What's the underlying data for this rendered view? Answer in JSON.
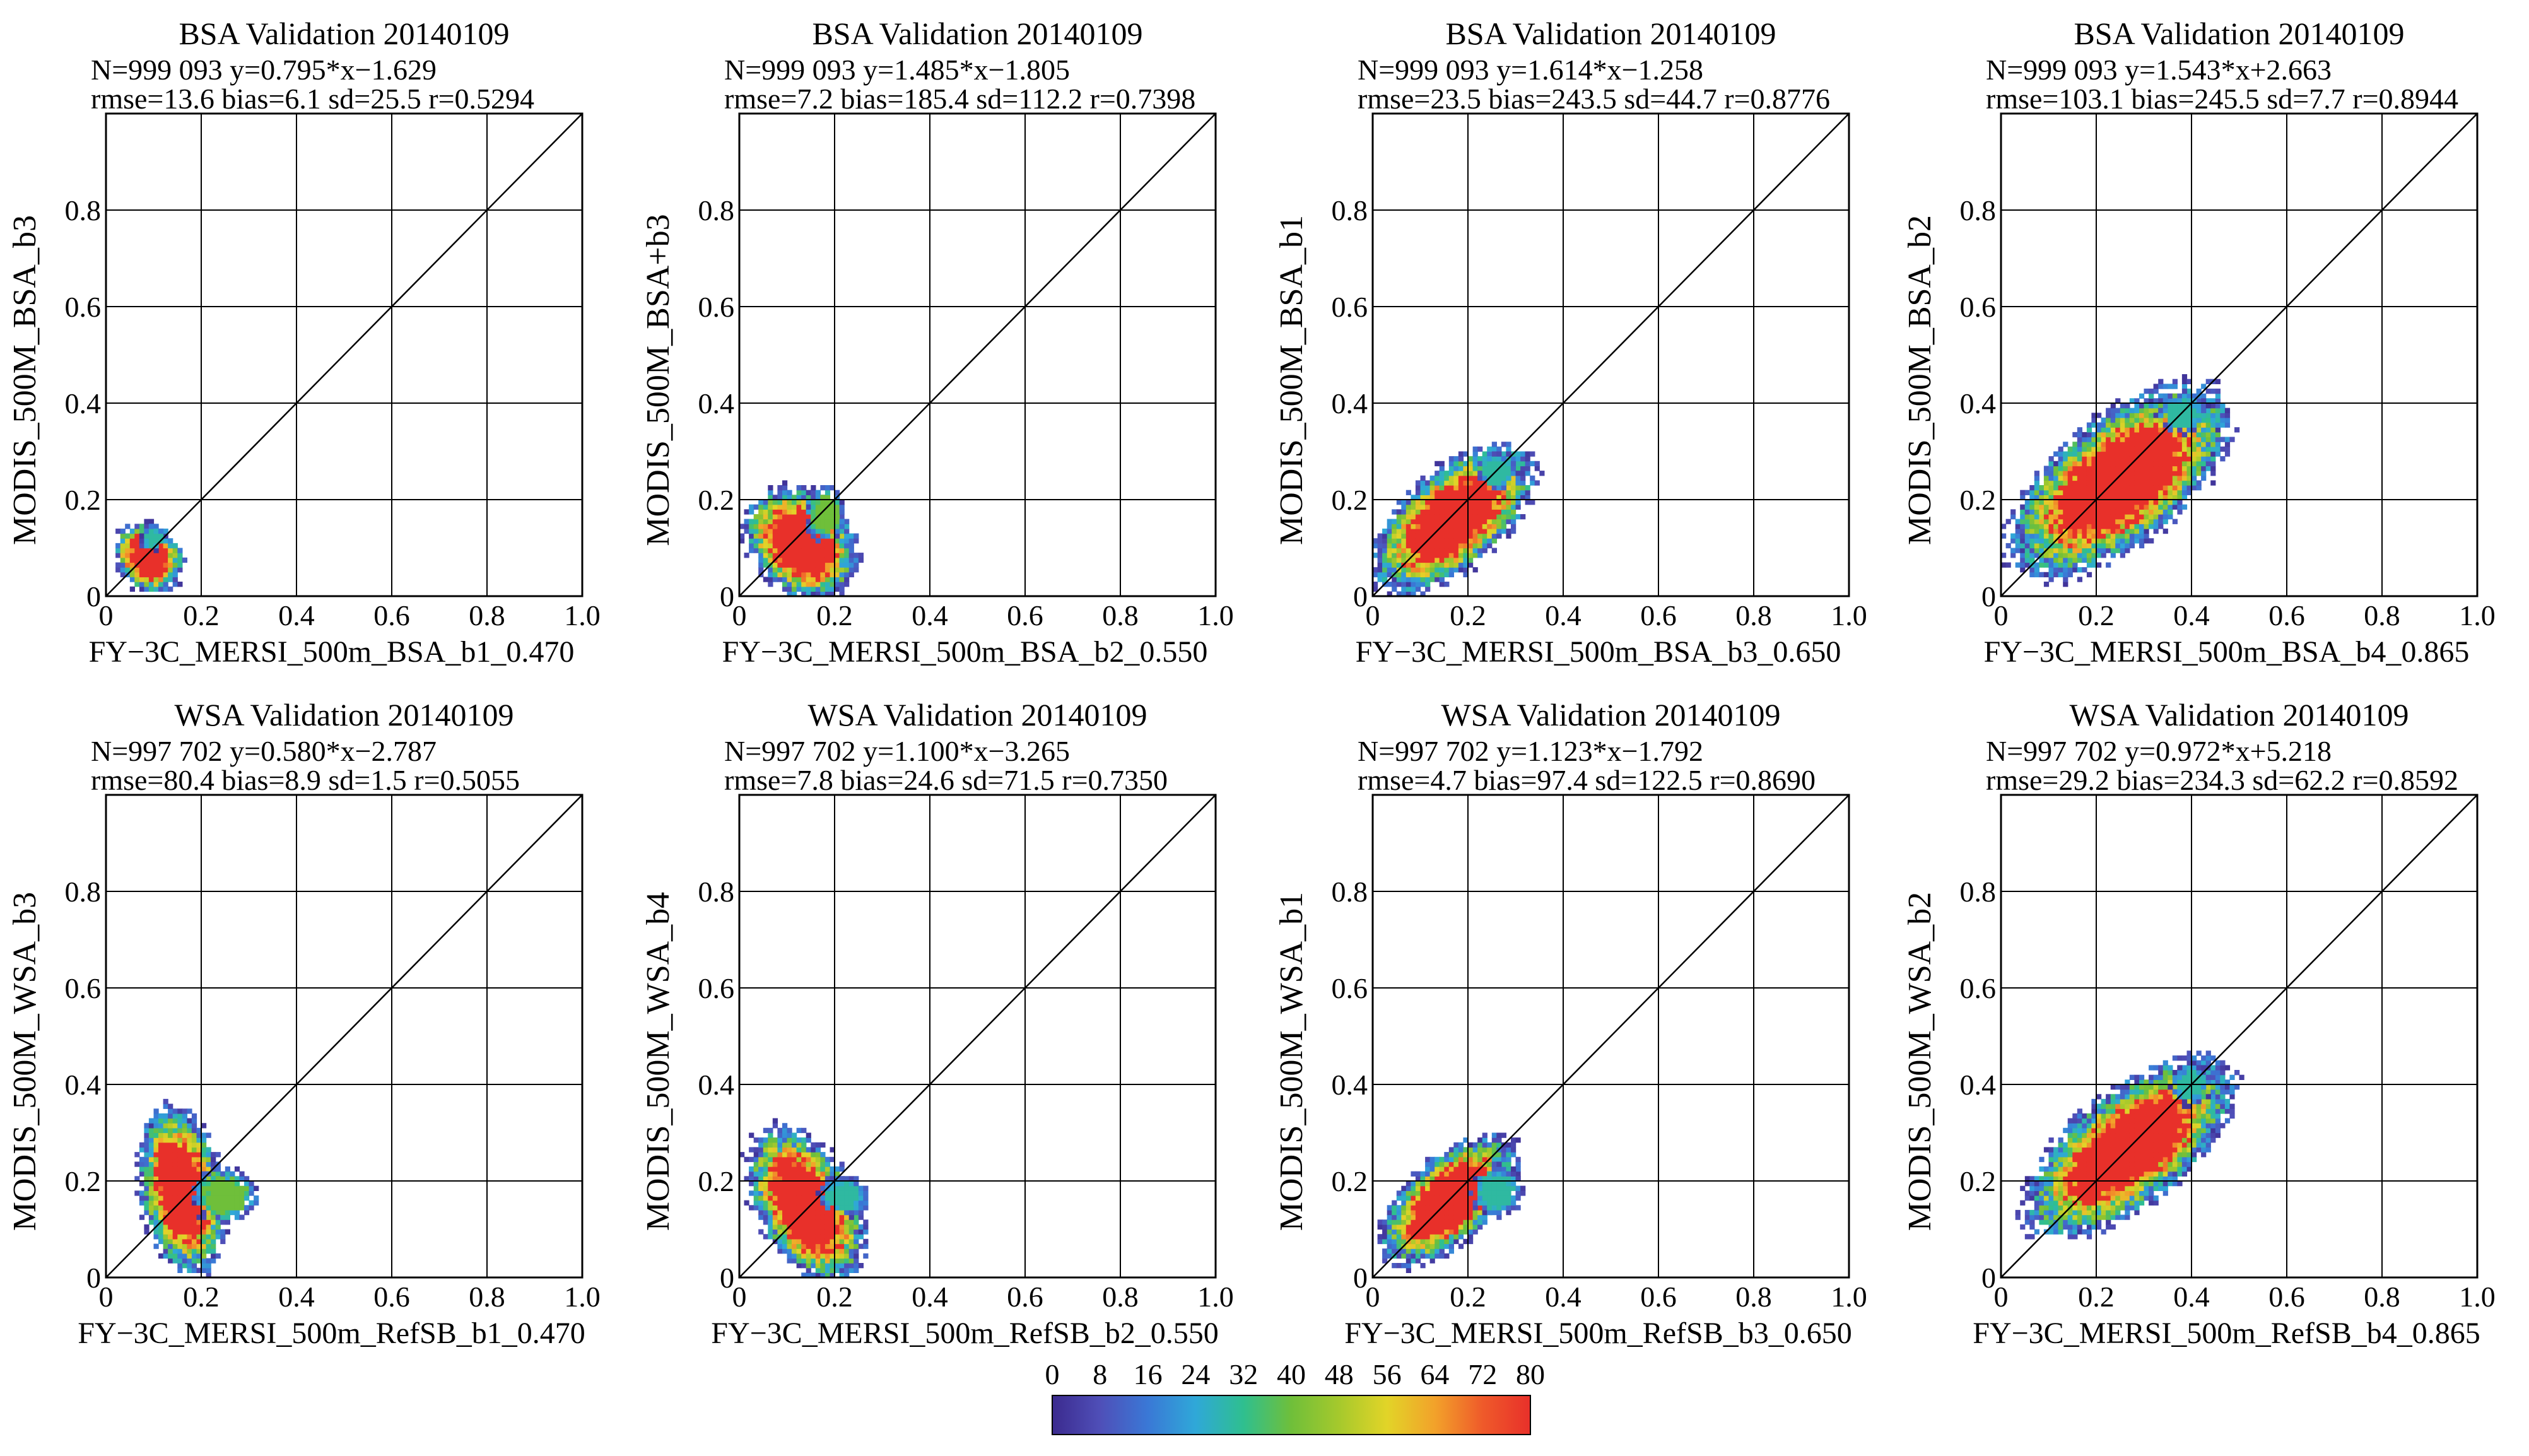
{
  "chart_data": [
    {
      "type": "heatmap",
      "title": "BSA Validation 20140109",
      "stats_line1": "N=999 093  y=0.795*x−1.629",
      "stats_line2": "rmse=13.6 bias=6.1 sd=25.5 r=0.5294",
      "xlabel": "FY−3C_MERSI_500m_BSA_b1_0.470",
      "ylabel": "MODIS_500M_BSA_b3",
      "xlim": [
        0,
        1.0
      ],
      "ylim": [
        0,
        1.0
      ],
      "xticks": [
        "0",
        "0.2",
        "0.4",
        "0.6",
        "0.8",
        "1.0"
      ],
      "yticks": [
        "0",
        "0.2",
        "0.4",
        "0.6",
        "0.8"
      ],
      "grid": true,
      "one_to_one_line": true,
      "density_blobs": [
        {
          "x": 0.09,
          "y": 0.08,
          "rx": 0.045,
          "ry": 0.055,
          "tilt": 45,
          "level": 80
        },
        {
          "x": 0.1,
          "y": 0.12,
          "rx": 0.02,
          "ry": 0.02,
          "tilt": 0,
          "level": 30
        }
      ]
    },
    {
      "type": "heatmap",
      "title": "BSA Validation 20140109",
      "stats_line1": "N=999 093  y=1.485*x−1.805",
      "stats_line2": "rmse=7.2 bias=185.4 sd=112.2 r=0.7398",
      "xlabel": "FY−3C_MERSI_500m_BSA_b2_0.550",
      "ylabel": "MODIS_500M_BSA+b3",
      "xlim": [
        0,
        1.0
      ],
      "ylim": [
        0,
        1.0
      ],
      "xticks": [
        "0",
        "0.2",
        "0.4",
        "0.6",
        "0.8",
        "1.0"
      ],
      "yticks": [
        "0",
        "0.2",
        "0.4",
        "0.6",
        "0.8"
      ],
      "grid": true,
      "one_to_one_line": true,
      "density_blobs": [
        {
          "x": 0.13,
          "y": 0.11,
          "rx": 0.07,
          "ry": 0.09,
          "tilt": 45,
          "level": 80
        },
        {
          "x": 0.18,
          "y": 0.17,
          "rx": 0.03,
          "ry": 0.04,
          "tilt": 0,
          "level": 40
        }
      ]
    },
    {
      "type": "heatmap",
      "title": "BSA Validation 20140109",
      "stats_line1": "N=999 093  y=1.614*x−1.258",
      "stats_line2": "rmse=23.5 bias=243.5 sd=44.7 r=0.8776",
      "xlabel": "FY−3C_MERSI_500m_BSA_b3_0.650",
      "ylabel": "MODIS_500M_BSA_b1",
      "xlim": [
        0,
        1.0
      ],
      "ylim": [
        0,
        1.0
      ],
      "xticks": [
        "0",
        "0.2",
        "0.4",
        "0.6",
        "0.8",
        "1.0"
      ],
      "yticks": [
        "0",
        "0.2",
        "0.4",
        "0.6",
        "0.8"
      ],
      "grid": true,
      "one_to_one_line": true,
      "density_blobs": [
        {
          "x": 0.17,
          "y": 0.16,
          "rx": 0.14,
          "ry": 0.07,
          "tilt": 40,
          "level": 80
        },
        {
          "x": 0.26,
          "y": 0.26,
          "rx": 0.03,
          "ry": 0.03,
          "tilt": 0,
          "level": 30
        }
      ]
    },
    {
      "type": "heatmap",
      "title": "BSA Validation 20140109",
      "stats_line1": "N=999 093  y=1.543*x+2.663",
      "stats_line2": "rmse=103.1 bias=245.5 sd=7.7 r=0.8944",
      "xlabel": "FY−3C_MERSI_500m_BSA_b4_0.865",
      "ylabel": "MODIS_500M_BSA_b2",
      "xlim": [
        0,
        1.0
      ],
      "ylim": [
        0,
        1.0
      ],
      "xticks": [
        "0",
        "0.2",
        "0.4",
        "0.6",
        "0.8",
        "1.0"
      ],
      "yticks": [
        "0",
        "0.2",
        "0.4",
        "0.6",
        "0.8"
      ],
      "grid": true,
      "one_to_one_line": true,
      "density_blobs": [
        {
          "x": 0.25,
          "y": 0.24,
          "rx": 0.19,
          "ry": 0.09,
          "tilt": 38,
          "level": 80
        },
        {
          "x": 0.38,
          "y": 0.38,
          "rx": 0.04,
          "ry": 0.03,
          "tilt": 0,
          "level": 30
        }
      ]
    },
    {
      "type": "heatmap",
      "title": "WSA Validation 20140109",
      "stats_line1": "N=997 702  y=0.580*x−2.787",
      "stats_line2": "rmse=80.4 bias=8.9 sd=1.5 r=0.5055",
      "xlabel": "FY−3C_MERSI_500m_RefSB_b1_0.470",
      "ylabel": "MODIS_500M_WSA_b3",
      "xlim": [
        0,
        1.0
      ],
      "ylim": [
        0,
        1.0
      ],
      "xticks": [
        "0",
        "0.2",
        "0.4",
        "0.6",
        "0.8",
        "1.0"
      ],
      "yticks": [
        "0",
        "0.2",
        "0.4",
        "0.6",
        "0.8"
      ],
      "grid": true,
      "one_to_one_line": true,
      "density_blobs": [
        {
          "x": 0.16,
          "y": 0.18,
          "rx": 0.06,
          "ry": 0.12,
          "tilt": 10,
          "level": 80
        },
        {
          "x": 0.25,
          "y": 0.17,
          "rx": 0.05,
          "ry": 0.04,
          "tilt": 0,
          "level": 40
        }
      ]
    },
    {
      "type": "heatmap",
      "title": "WSA Validation 20140109",
      "stats_line1": "N=997 702  y=1.100*x−3.265",
      "stats_line2": "rmse=7.8 bias=24.6 sd=71.5 r=0.7350",
      "xlabel": "FY−3C_MERSI_500m_RefSB_b2_0.550",
      "ylabel": "MODIS_500M_WSA_b4",
      "xlim": [
        0,
        1.0
      ],
      "ylim": [
        0,
        1.0
      ],
      "xticks": [
        "0",
        "0.2",
        "0.4",
        "0.6",
        "0.8",
        "1.0"
      ],
      "yticks": [
        "0",
        "0.2",
        "0.4",
        "0.6",
        "0.8"
      ],
      "grid": true,
      "one_to_one_line": true,
      "density_blobs": [
        {
          "x": 0.14,
          "y": 0.15,
          "rx": 0.07,
          "ry": 0.12,
          "tilt": 30,
          "level": 80
        },
        {
          "x": 0.22,
          "y": 0.17,
          "rx": 0.04,
          "ry": 0.03,
          "tilt": 0,
          "level": 30
        }
      ]
    },
    {
      "type": "heatmap",
      "title": "WSA Validation 20140109",
      "stats_line1": "N=997 702  y=1.123*x−1.792",
      "stats_line2": "rmse=4.7 bias=97.4 sd=122.5 r=0.8690",
      "xlabel": "FY−3C_MERSI_500m_RefSB_b3_0.650",
      "ylabel": "MODIS_500M_WSA_b1",
      "xlim": [
        0,
        1.0
      ],
      "ylim": [
        0,
        1.0
      ],
      "xticks": [
        "0",
        "0.2",
        "0.4",
        "0.6",
        "0.8",
        "1.0"
      ],
      "yticks": [
        "0",
        "0.2",
        "0.4",
        "0.6",
        "0.8"
      ],
      "grid": true,
      "one_to_one_line": true,
      "density_blobs": [
        {
          "x": 0.16,
          "y": 0.16,
          "rx": 0.12,
          "ry": 0.06,
          "tilt": 42,
          "level": 80
        },
        {
          "x": 0.26,
          "y": 0.18,
          "rx": 0.04,
          "ry": 0.04,
          "tilt": 0,
          "level": 30
        }
      ]
    },
    {
      "type": "heatmap",
      "title": "WSA Validation 20140109",
      "stats_line1": "N=997 702  y=0.972*x+5.218",
      "stats_line2": "rmse=29.2 bias=234.3 sd=62.2 r=0.8592",
      "xlabel": "FY−3C_MERSI_500m_RefSB_b4_0.865",
      "ylabel": "MODIS_500M_WSA_b2",
      "xlim": [
        0,
        1.0
      ],
      "ylim": [
        0,
        1.0
      ],
      "xticks": [
        "0",
        "0.2",
        "0.4",
        "0.6",
        "0.8",
        "1.0"
      ],
      "yticks": [
        "0",
        "0.2",
        "0.4",
        "0.6",
        "0.8"
      ],
      "grid": true,
      "one_to_one_line": true,
      "density_blobs": [
        {
          "x": 0.27,
          "y": 0.27,
          "rx": 0.18,
          "ry": 0.08,
          "tilt": 38,
          "level": 80
        },
        {
          "x": 0.4,
          "y": 0.4,
          "rx": 0.03,
          "ry": 0.03,
          "tilt": 0,
          "level": 30
        }
      ]
    }
  ],
  "colorbar": {
    "ticks": [
      "0",
      "8",
      "16",
      "24",
      "32",
      "40",
      "48",
      "56",
      "64",
      "72",
      "80"
    ],
    "colors": [
      "#3b2a8e",
      "#4f4fb8",
      "#3a78d6",
      "#2fa8d8",
      "#2fbf8f",
      "#6fbf3a",
      "#a6c92c",
      "#e2d428",
      "#f2a22a",
      "#ef5a2a",
      "#e8302a"
    ]
  }
}
